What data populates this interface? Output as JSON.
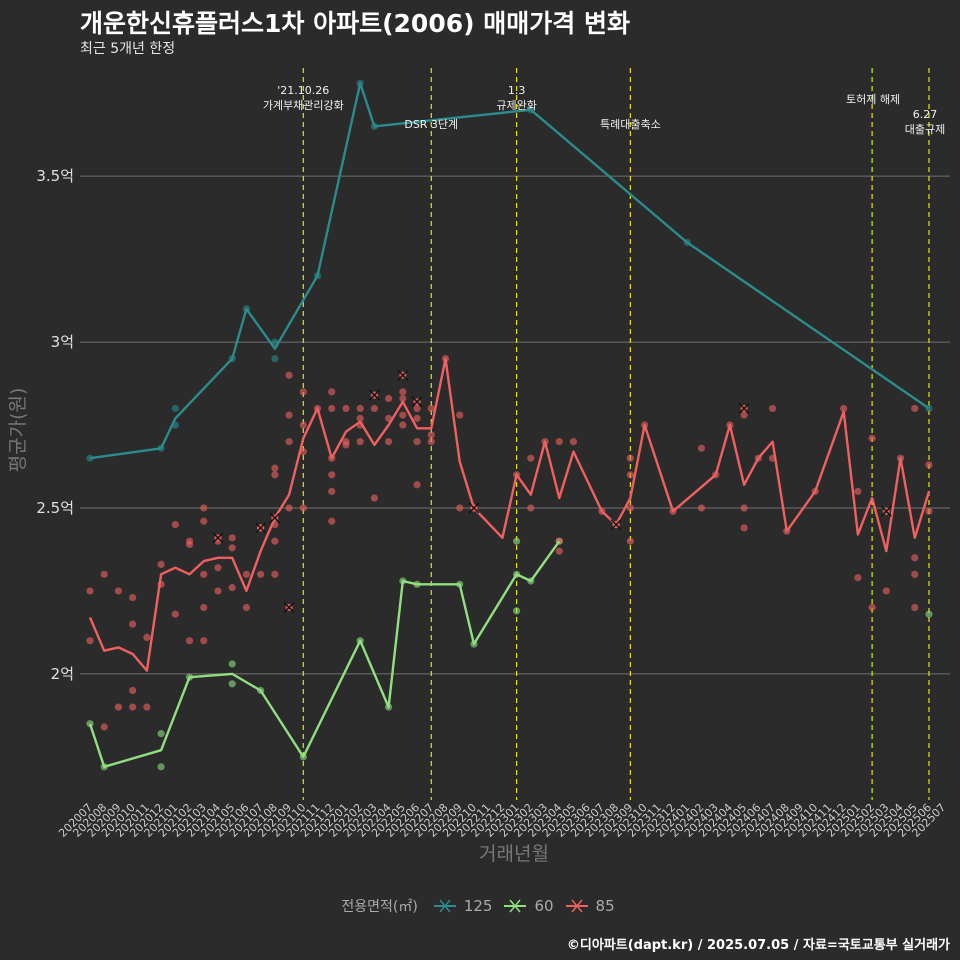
{
  "title": "개운한신휴플러스1차 아파트(2006) 매매가격 변화",
  "subtitle": "최근 5개년 한정",
  "credit": "©디아파트(dapt.kr) / 2025.07.05 / 자료=국토교통부 실거래가",
  "legend": {
    "title": "전용면적(㎡)",
    "items": [
      {
        "label": "125",
        "color": "#2a8c8c"
      },
      {
        "label": "60",
        "color": "#90e080"
      },
      {
        "label": "85",
        "color": "#f06060"
      }
    ]
  },
  "chart_data": {
    "type": "line",
    "xlabel": "거래년월",
    "ylabel": "평균가(원)",
    "ylim": [
      1.62,
      3.85
    ],
    "yticks": [
      {
        "value": 2.0,
        "label": "2억"
      },
      {
        "value": 2.5,
        "label": "2.5억"
      },
      {
        "value": 3.0,
        "label": "3억"
      },
      {
        "value": 3.5,
        "label": "3.5억"
      }
    ],
    "grid": true,
    "legend_position": "bottom",
    "categories": [
      "202007",
      "202008",
      "202009",
      "202010",
      "202011",
      "202012",
      "202101",
      "202102",
      "202103",
      "202104",
      "202105",
      "202106",
      "202107",
      "202108",
      "202109",
      "202110",
      "202111",
      "202112",
      "202201",
      "202202",
      "202203",
      "202204",
      "202205",
      "202206",
      "202207",
      "202208",
      "202209",
      "202210",
      "202211",
      "202212",
      "202301",
      "202302",
      "202303",
      "202304",
      "202305",
      "202306",
      "202307",
      "202308",
      "202309",
      "202310",
      "202311",
      "202312",
      "202401",
      "202402",
      "202403",
      "202404",
      "202405",
      "202406",
      "202407",
      "202408",
      "202409",
      "202410",
      "202411",
      "202412",
      "202501",
      "202502",
      "202503",
      "202504",
      "202505",
      "202506",
      "202507"
    ],
    "series": [
      {
        "name": "125",
        "color": "#2a8c8c",
        "line": [
          [
            "202007",
            2.65
          ],
          [
            "202012",
            2.68
          ],
          [
            "202101",
            2.77
          ],
          [
            "202105",
            2.95
          ],
          [
            "202106",
            3.1
          ],
          [
            "202108",
            2.98
          ],
          [
            "202111",
            3.2
          ],
          [
            "202202",
            3.78
          ],
          [
            "202203",
            3.65
          ],
          [
            "202302",
            3.7
          ],
          [
            "202401",
            3.3
          ],
          [
            "202506",
            2.8
          ]
        ],
        "points": [
          [
            "202007",
            2.65
          ],
          [
            "202012",
            2.68
          ],
          [
            "202101",
            2.75
          ],
          [
            "202101",
            2.8
          ],
          [
            "202105",
            2.95
          ],
          [
            "202106",
            3.1
          ],
          [
            "202108",
            2.95
          ],
          [
            "202108",
            3.0
          ],
          [
            "202111",
            3.2
          ],
          [
            "202202",
            3.78
          ],
          [
            "202203",
            3.65
          ],
          [
            "202302",
            3.7
          ],
          [
            "202401",
            3.3
          ],
          [
            "202506",
            2.8
          ]
        ]
      },
      {
        "name": "60",
        "color": "#90e080",
        "line": [
          [
            "202007",
            1.85
          ],
          [
            "202008",
            1.72
          ],
          [
            "202012",
            1.77
          ],
          [
            "202102",
            1.99
          ],
          [
            "202105",
            2.0
          ],
          [
            "202107",
            1.95
          ],
          [
            "202110",
            1.75
          ],
          [
            "202202",
            2.1
          ],
          [
            "202204",
            1.9
          ],
          [
            "202205",
            2.28
          ],
          [
            "202206",
            2.27
          ],
          [
            "202209",
            2.27
          ],
          [
            "202210",
            2.09
          ],
          [
            "202301",
            2.3
          ],
          [
            "202302",
            2.28
          ],
          [
            "202304",
            2.4
          ]
        ],
        "points": [
          [
            "202007",
            1.85
          ],
          [
            "202008",
            1.72
          ],
          [
            "202012",
            1.82
          ],
          [
            "202012",
            1.72
          ],
          [
            "202102",
            1.99
          ],
          [
            "202105",
            2.03
          ],
          [
            "202105",
            1.97
          ],
          [
            "202107",
            1.95
          ],
          [
            "202110",
            1.75
          ],
          [
            "202202",
            2.1
          ],
          [
            "202204",
            1.9
          ],
          [
            "202205",
            2.28
          ],
          [
            "202206",
            2.27
          ],
          [
            "202209",
            2.27
          ],
          [
            "202210",
            2.09
          ],
          [
            "202301",
            2.4
          ],
          [
            "202301",
            2.3
          ],
          [
            "202301",
            2.19
          ],
          [
            "202302",
            2.28
          ],
          [
            "202304",
            2.4
          ],
          [
            "202506",
            2.18
          ]
        ]
      },
      {
        "name": "85",
        "color": "#f06060",
        "line": [
          [
            "202007",
            2.17
          ],
          [
            "202008",
            2.07
          ],
          [
            "202009",
            2.08
          ],
          [
            "202010",
            2.06
          ],
          [
            "202011",
            2.01
          ],
          [
            "202012",
            2.3
          ],
          [
            "202101",
            2.32
          ],
          [
            "202102",
            2.3
          ],
          [
            "202103",
            2.34
          ],
          [
            "202104",
            2.35
          ],
          [
            "202105",
            2.35
          ],
          [
            "202106",
            2.25
          ],
          [
            "202107",
            2.37
          ],
          [
            "202108",
            2.47
          ],
          [
            "202109",
            2.54
          ],
          [
            "202110",
            2.71
          ],
          [
            "202111",
            2.8
          ],
          [
            "202112",
            2.65
          ],
          [
            "202201",
            2.73
          ],
          [
            "202202",
            2.76
          ],
          [
            "202203",
            2.69
          ],
          [
            "202204",
            2.75
          ],
          [
            "202205",
            2.82
          ],
          [
            "202206",
            2.74
          ],
          [
            "202207",
            2.74
          ],
          [
            "202208",
            2.95
          ],
          [
            "202209",
            2.64
          ],
          [
            "202210",
            2.5
          ],
          [
            "202212",
            2.41
          ],
          [
            "202301",
            2.6
          ],
          [
            "202302",
            2.54
          ],
          [
            "202303",
            2.7
          ],
          [
            "202304",
            2.53
          ],
          [
            "202305",
            2.67
          ],
          [
            "202307",
            2.49
          ],
          [
            "202308",
            2.45
          ],
          [
            "202309",
            2.53
          ],
          [
            "202310",
            2.75
          ],
          [
            "202312",
            2.49
          ],
          [
            "202403",
            2.6
          ],
          [
            "202404",
            2.75
          ],
          [
            "202405",
            2.57
          ],
          [
            "202406",
            2.65
          ],
          [
            "202407",
            2.7
          ],
          [
            "202408",
            2.43
          ],
          [
            "202410",
            2.55
          ],
          [
            "202412",
            2.79
          ],
          [
            "202501",
            2.42
          ],
          [
            "202502",
            2.53
          ],
          [
            "202503",
            2.37
          ],
          [
            "202504",
            2.65
          ],
          [
            "202505",
            2.41
          ],
          [
            "202506",
            2.55
          ]
        ],
        "points": [
          [
            "202007",
            2.25
          ],
          [
            "202007",
            2.1
          ],
          [
            "202008",
            2.3
          ],
          [
            "202008",
            1.84
          ],
          [
            "202009",
            2.25
          ],
          [
            "202009",
            1.9
          ],
          [
            "202010",
            2.23
          ],
          [
            "202010",
            2.15
          ],
          [
            "202010",
            1.95
          ],
          [
            "202010",
            1.9
          ],
          [
            "202011",
            2.11
          ],
          [
            "202011",
            1.9
          ],
          [
            "202012",
            2.33
          ],
          [
            "202012",
            2.27
          ],
          [
            "202101",
            2.45
          ],
          [
            "202101",
            2.18
          ],
          [
            "202102",
            2.4
          ],
          [
            "202102",
            2.39
          ],
          [
            "202102",
            2.1
          ],
          [
            "202103",
            2.5
          ],
          [
            "202103",
            2.46
          ],
          [
            "202103",
            2.3
          ],
          [
            "202103",
            2.2
          ],
          [
            "202103",
            2.1
          ],
          [
            "202104",
            2.4
          ],
          [
            "202104",
            2.32
          ],
          [
            "202104",
            2.25
          ],
          [
            "202105",
            2.41
          ],
          [
            "202105",
            2.38
          ],
          [
            "202105",
            2.26
          ],
          [
            "202106",
            2.3
          ],
          [
            "202106",
            2.2
          ],
          [
            "202107",
            2.44
          ],
          [
            "202107",
            2.3
          ],
          [
            "202108",
            2.62
          ],
          [
            "202108",
            2.6
          ],
          [
            "202108",
            2.45
          ],
          [
            "202108",
            2.4
          ],
          [
            "202108",
            2.3
          ],
          [
            "202109",
            2.9
          ],
          [
            "202109",
            2.78
          ],
          [
            "202109",
            2.7
          ],
          [
            "202109",
            2.5
          ],
          [
            "202110",
            2.85
          ],
          [
            "202110",
            2.75
          ],
          [
            "202110",
            2.67
          ],
          [
            "202110",
            2.5
          ],
          [
            "202111",
            2.8
          ],
          [
            "202112",
            2.85
          ],
          [
            "202112",
            2.8
          ],
          [
            "202112",
            2.65
          ],
          [
            "202112",
            2.6
          ],
          [
            "202112",
            2.55
          ],
          [
            "202112",
            2.46
          ],
          [
            "202201",
            2.8
          ],
          [
            "202201",
            2.7
          ],
          [
            "202201",
            2.69
          ],
          [
            "202202",
            2.8
          ],
          [
            "202202",
            2.77
          ],
          [
            "202202",
            2.75
          ],
          [
            "202202",
            2.7
          ],
          [
            "202203",
            2.8
          ],
          [
            "202203",
            2.53
          ],
          [
            "202204",
            2.83
          ],
          [
            "202204",
            2.77
          ],
          [
            "202204",
            2.7
          ],
          [
            "202205",
            2.85
          ],
          [
            "202205",
            2.83
          ],
          [
            "202205",
            2.78
          ],
          [
            "202205",
            2.75
          ],
          [
            "202206",
            2.8
          ],
          [
            "202206",
            2.77
          ],
          [
            "202206",
            2.7
          ],
          [
            "202206",
            2.57
          ],
          [
            "202207",
            2.8
          ],
          [
            "202207",
            2.72
          ],
          [
            "202207",
            2.7
          ],
          [
            "202208",
            2.95
          ],
          [
            "202209",
            2.78
          ],
          [
            "202209",
            2.5
          ],
          [
            "202210",
            2.5
          ],
          [
            "202301",
            2.6
          ],
          [
            "202302",
            2.65
          ],
          [
            "202302",
            2.5
          ],
          [
            "202303",
            2.7
          ],
          [
            "202304",
            2.7
          ],
          [
            "202304",
            2.4
          ],
          [
            "202304",
            2.37
          ],
          [
            "202305",
            2.7
          ],
          [
            "202307",
            2.49
          ],
          [
            "202308",
            2.45
          ],
          [
            "202309",
            2.65
          ],
          [
            "202309",
            2.6
          ],
          [
            "202309",
            2.5
          ],
          [
            "202309",
            2.4
          ],
          [
            "202310",
            2.75
          ],
          [
            "202312",
            2.49
          ],
          [
            "202402",
            2.68
          ],
          [
            "202402",
            2.5
          ],
          [
            "202403",
            2.6
          ],
          [
            "202404",
            2.75
          ],
          [
            "202405",
            2.78
          ],
          [
            "202405",
            2.5
          ],
          [
            "202405",
            2.44
          ],
          [
            "202406",
            2.65
          ],
          [
            "202407",
            2.8
          ],
          [
            "202407",
            2.65
          ],
          [
            "202408",
            2.43
          ],
          [
            "202410",
            2.55
          ],
          [
            "202412",
            2.8
          ],
          [
            "202501",
            2.55
          ],
          [
            "202501",
            2.29
          ],
          [
            "202502",
            2.71
          ],
          [
            "202502",
            2.2
          ],
          [
            "202503",
            2.25
          ],
          [
            "202504",
            2.65
          ],
          [
            "202505",
            2.8
          ],
          [
            "202505",
            2.35
          ],
          [
            "202505",
            2.3
          ],
          [
            "202505",
            2.2
          ],
          [
            "202506",
            2.63
          ],
          [
            "202506",
            2.49
          ]
        ],
        "cancelled": [
          [
            "202104",
            2.41
          ],
          [
            "202107",
            2.44
          ],
          [
            "202108",
            2.47
          ],
          [
            "202109",
            2.2
          ],
          [
            "202203",
            2.84
          ],
          [
            "202205",
            2.9
          ],
          [
            "202206",
            2.82
          ],
          [
            "202210",
            2.5
          ],
          [
            "202308",
            2.45
          ],
          [
            "202405",
            2.8
          ],
          [
            "202503",
            2.49
          ]
        ]
      }
    ],
    "annotations": [
      {
        "x": "202110",
        "lines": [
          "'21.10.26",
          "가계부채관리강화"
        ]
      },
      {
        "x": "202207",
        "lines": [
          "DSR 3단계"
        ]
      },
      {
        "x": "202301",
        "lines": [
          "1.3",
          "규제완화"
        ]
      },
      {
        "x": "202309",
        "lines": [
          "특례대출축소"
        ]
      },
      {
        "x": "202502",
        "lines": [
          "토허제 해제"
        ]
      },
      {
        "x": "202506",
        "lines": [
          "6.27",
          "대출규제"
        ]
      }
    ]
  }
}
